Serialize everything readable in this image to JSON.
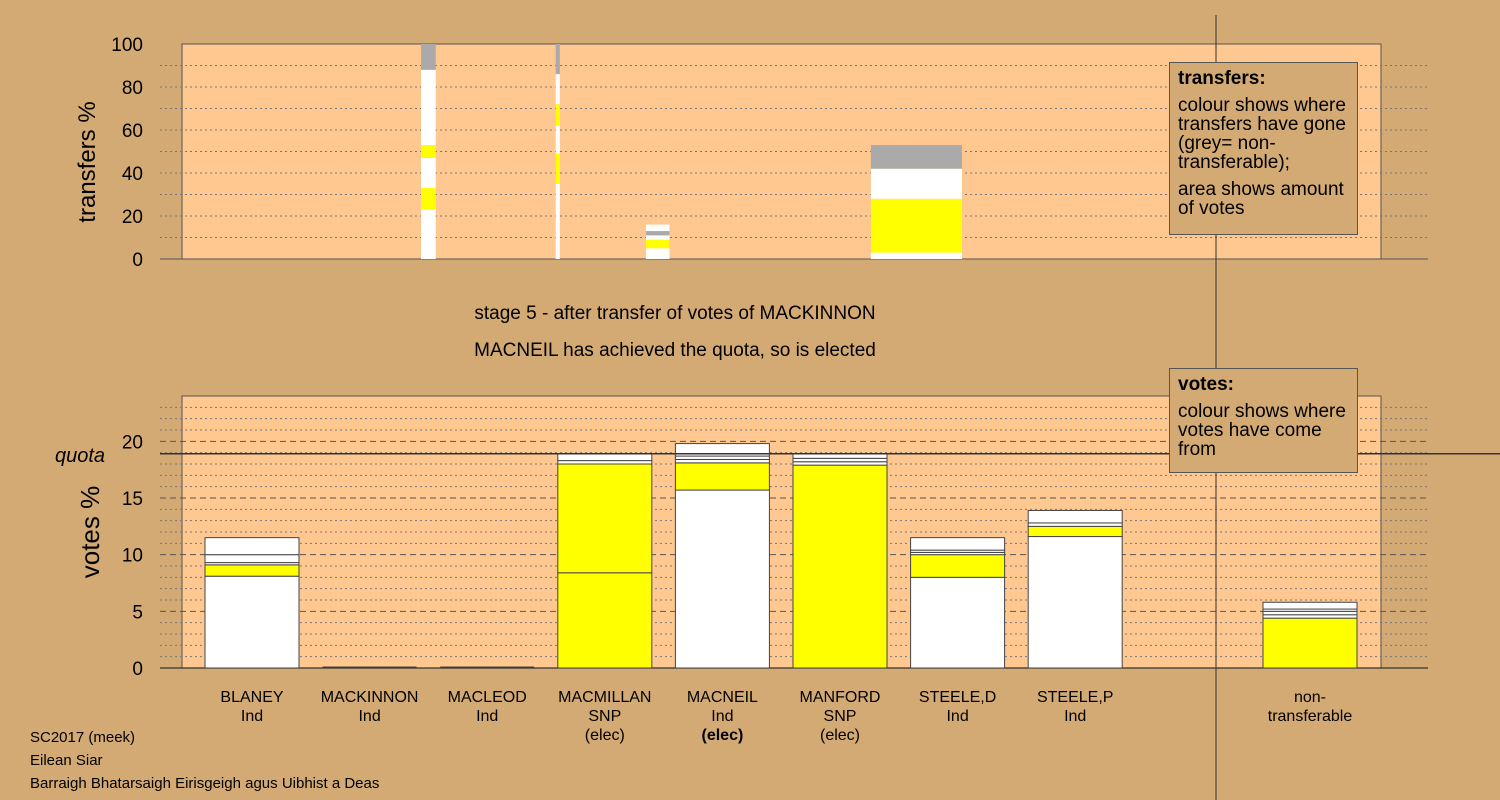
{
  "header": {
    "stage": "stage 5 - after transfer of votes of MACKINNON",
    "elected": "MACNEIL has achieved the quota, so is elected"
  },
  "legend_transfers": {
    "title": "transfers:",
    "line1": "colour shows where transfers have gone (grey= non-transferable);",
    "line2": "area shows amount of votes"
  },
  "legend_votes": {
    "title": "votes:",
    "line1": "colour shows where votes have come from"
  },
  "footer": {
    "line1": "SC2017 (meek)",
    "line2": "Eilean Siar",
    "line3": "Barraigh Bhatarsaigh Eirisgeigh agus Uibhist a Deas"
  },
  "colors": {
    "background": "#d4aa74",
    "plot_area": "#ffc890",
    "white": "#ffffff",
    "yellow": "#ffff00",
    "grey": "#aaaaaa"
  },
  "candidates": [
    {
      "name": "BLANEY",
      "party": "Ind",
      "status": ""
    },
    {
      "name": "MACKINNON",
      "party": "Ind",
      "status": ""
    },
    {
      "name": "MACLEOD",
      "party": "Ind",
      "status": ""
    },
    {
      "name": "MACMILLAN",
      "party": "SNP",
      "status": "(elec)"
    },
    {
      "name": "MACNEIL",
      "party": "Ind",
      "status": "(elec)",
      "status_bold": true
    },
    {
      "name": "MANFORD",
      "party": "SNP",
      "status": "(elec)"
    },
    {
      "name": "STEELE,D",
      "party": "Ind",
      "status": ""
    },
    {
      "name": "STEELE,P",
      "party": "Ind",
      "status": ""
    },
    {
      "name": "non-",
      "party": "transferable",
      "status": ""
    }
  ],
  "chart_data": [
    {
      "type": "bar",
      "ylabel": "transfers %",
      "ylim": [
        0,
        100
      ],
      "yticks": [
        0,
        20,
        40,
        60,
        80,
        100
      ],
      "grid": true,
      "note": "transfer bars: width = amount of votes transferred, segments = destination",
      "bars": [
        {
          "slot": 1.5,
          "width_votes": 0.25,
          "segments": [
            {
              "from": 0,
              "to": 23,
              "color": "white"
            },
            {
              "from": 23,
              "to": 33,
              "color": "yellow"
            },
            {
              "from": 33,
              "to": 47,
              "color": "white"
            },
            {
              "from": 47,
              "to": 53,
              "color": "yellow"
            },
            {
              "from": 53,
              "to": 88,
              "color": "white"
            },
            {
              "from": 88,
              "to": 100,
              "color": "grey"
            }
          ]
        },
        {
          "slot": 2.6,
          "width_votes": 0.07,
          "segments": [
            {
              "from": 0,
              "to": 35,
              "color": "white"
            },
            {
              "from": 35,
              "to": 49,
              "color": "yellow"
            },
            {
              "from": 49,
              "to": 62,
              "color": "white"
            },
            {
              "from": 62,
              "to": 72,
              "color": "yellow"
            },
            {
              "from": 72,
              "to": 86,
              "color": "white"
            },
            {
              "from": 86,
              "to": 100,
              "color": "grey"
            }
          ]
        },
        {
          "slot": 3.45,
          "width_votes": 0.4,
          "segments": [
            {
              "from": 0,
              "to": 5,
              "color": "white"
            },
            {
              "from": 5,
              "to": 9,
              "color": "yellow"
            },
            {
              "from": 9,
              "to": 11,
              "color": "white"
            },
            {
              "from": 11,
              "to": 13,
              "color": "grey"
            },
            {
              "from": 13,
              "to": 16,
              "color": "white"
            },
            {
              "from": 16,
              "to": 16,
              "color": "grey"
            }
          ]
        },
        {
          "slot": 5.65,
          "width_votes": 1.55,
          "segments": [
            {
              "from": 0,
              "to": 3,
              "color": "white"
            },
            {
              "from": 3,
              "to": 28,
              "color": "yellow"
            },
            {
              "from": 28,
              "to": 30,
              "color": "white"
            },
            {
              "from": 30,
              "to": 42,
              "color": "white"
            },
            {
              "from": 42,
              "to": 53,
              "color": "grey"
            }
          ]
        }
      ]
    },
    {
      "type": "bar",
      "ylabel": "votes %",
      "ylim": [
        0,
        24
      ],
      "yticks": [
        0,
        5,
        10,
        15,
        20
      ],
      "quota": 18.9,
      "quota_label": "quota",
      "grid": true,
      "categories": [
        "BLANEY",
        "MACKINNON",
        "MACLEOD",
        "MACMILLAN",
        "MACNEIL",
        "MANFORD",
        "STEELE,D",
        "STEELE,P",
        "non-transferable"
      ],
      "stacks": [
        [
          {
            "v": 8.1,
            "c": "white"
          },
          {
            "v": 1.0,
            "c": "yellow"
          },
          {
            "v": 0.2,
            "c": "white"
          },
          {
            "v": 0.7,
            "c": "white"
          },
          {
            "v": 1.5,
            "c": "white"
          }
        ],
        [],
        [],
        [
          {
            "v": 8.4,
            "c": "yellow"
          },
          {
            "v": 9.6,
            "c": "yellow"
          },
          {
            "v": 0.3,
            "c": "white"
          },
          {
            "v": 0.6,
            "c": "white"
          }
        ],
        [
          {
            "v": 15.7,
            "c": "white"
          },
          {
            "v": 2.4,
            "c": "yellow"
          },
          {
            "v": 0.3,
            "c": "white"
          },
          {
            "v": 0.3,
            "c": "white"
          },
          {
            "v": 1.1,
            "c": "white"
          }
        ],
        [
          {
            "v": 17.9,
            "c": "yellow"
          },
          {
            "v": 0.3,
            "c": "white"
          },
          {
            "v": 0.3,
            "c": "white"
          },
          {
            "v": 0.4,
            "c": "white"
          }
        ],
        [
          {
            "v": 8.0,
            "c": "white"
          },
          {
            "v": 2.0,
            "c": "yellow"
          },
          {
            "v": 0.2,
            "c": "white"
          },
          {
            "v": 0.2,
            "c": "white"
          },
          {
            "v": 1.1,
            "c": "white"
          }
        ],
        [
          {
            "v": 11.6,
            "c": "white"
          },
          {
            "v": 0.9,
            "c": "yellow"
          },
          {
            "v": 0.3,
            "c": "white"
          },
          {
            "v": 1.1,
            "c": "white"
          }
        ],
        [
          {
            "v": 4.4,
            "c": "yellow"
          },
          {
            "v": 0.3,
            "c": "white"
          },
          {
            "v": 0.3,
            "c": "white"
          },
          {
            "v": 0.2,
            "c": "white"
          },
          {
            "v": 0.6,
            "c": "white"
          }
        ]
      ]
    }
  ]
}
